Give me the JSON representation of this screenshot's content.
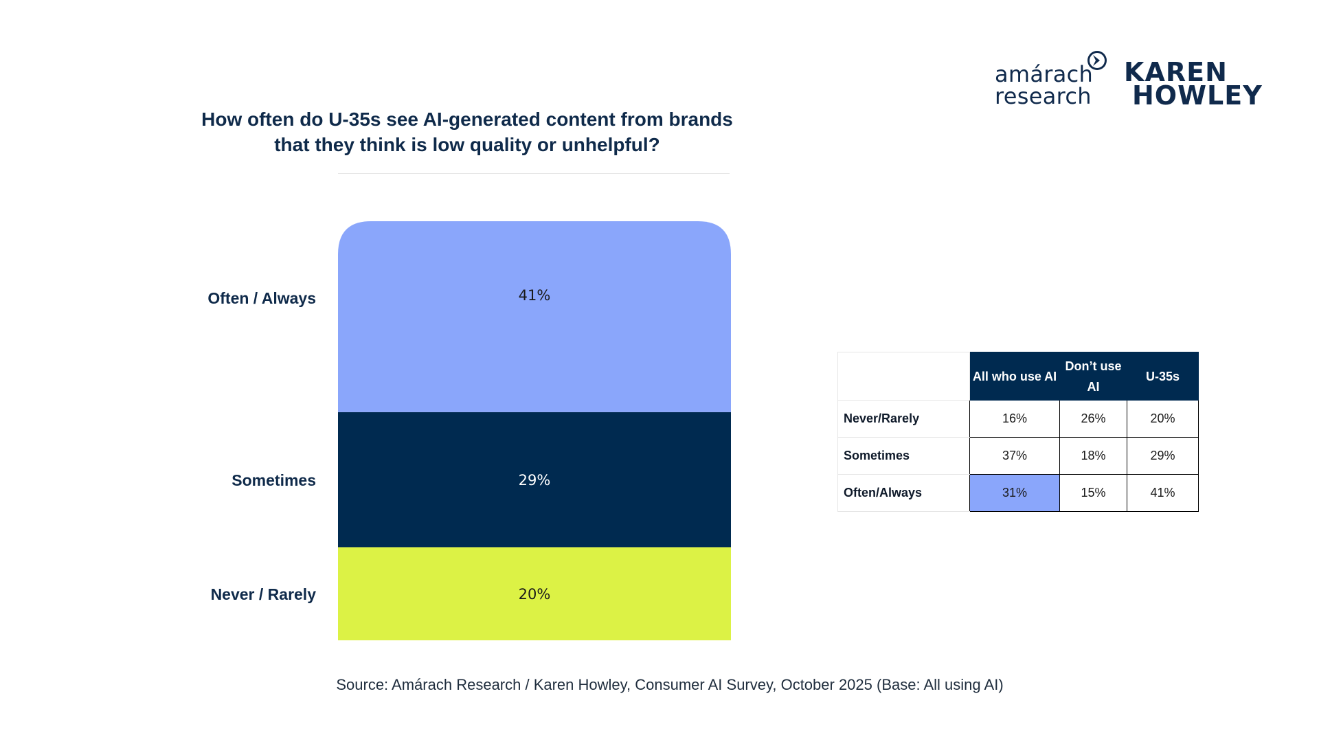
{
  "logos": {
    "amarach_line1": "amárach",
    "amarach_line2": "research",
    "karen_line1": "KAREN",
    "karen_line2": "HOWLEY"
  },
  "chart_data": {
    "type": "bar",
    "stacked": true,
    "title_line1": "How often do U-35s see AI-generated content from brands",
    "title_line2": "that they think is low quality or unhelpful?",
    "segments": [
      {
        "label": "Never / Rarely",
        "value": 20,
        "display": "20%",
        "color": "#dcf245",
        "text_color": "#1a1a1a"
      },
      {
        "label": "Sometimes",
        "value": 29,
        "display": "29%",
        "color": "#002a50",
        "text_color": "#ffffff"
      },
      {
        "label": "Often / Always",
        "value": 41,
        "display": "41%",
        "color": "#8aa6fb",
        "text_color": "#1a1a1a"
      }
    ]
  },
  "table": {
    "columns": [
      "All who use AI",
      "Don’t use AI",
      "U-35s"
    ],
    "rows": [
      {
        "label": "Never/Rarely",
        "values": [
          "16%",
          "26%",
          "20%"
        ]
      },
      {
        "label": "Sometimes",
        "values": [
          "37%",
          "18%",
          "29%"
        ]
      },
      {
        "label": "Often/Always",
        "values": [
          "31%",
          "15%",
          "41%"
        ],
        "highlight_index": 0
      }
    ],
    "highlight_color": "#8aa6fb"
  },
  "source": "Source: Amárach Research / Karen Howley, Consumer AI Survey, October 2025 (Base: All using AI)"
}
